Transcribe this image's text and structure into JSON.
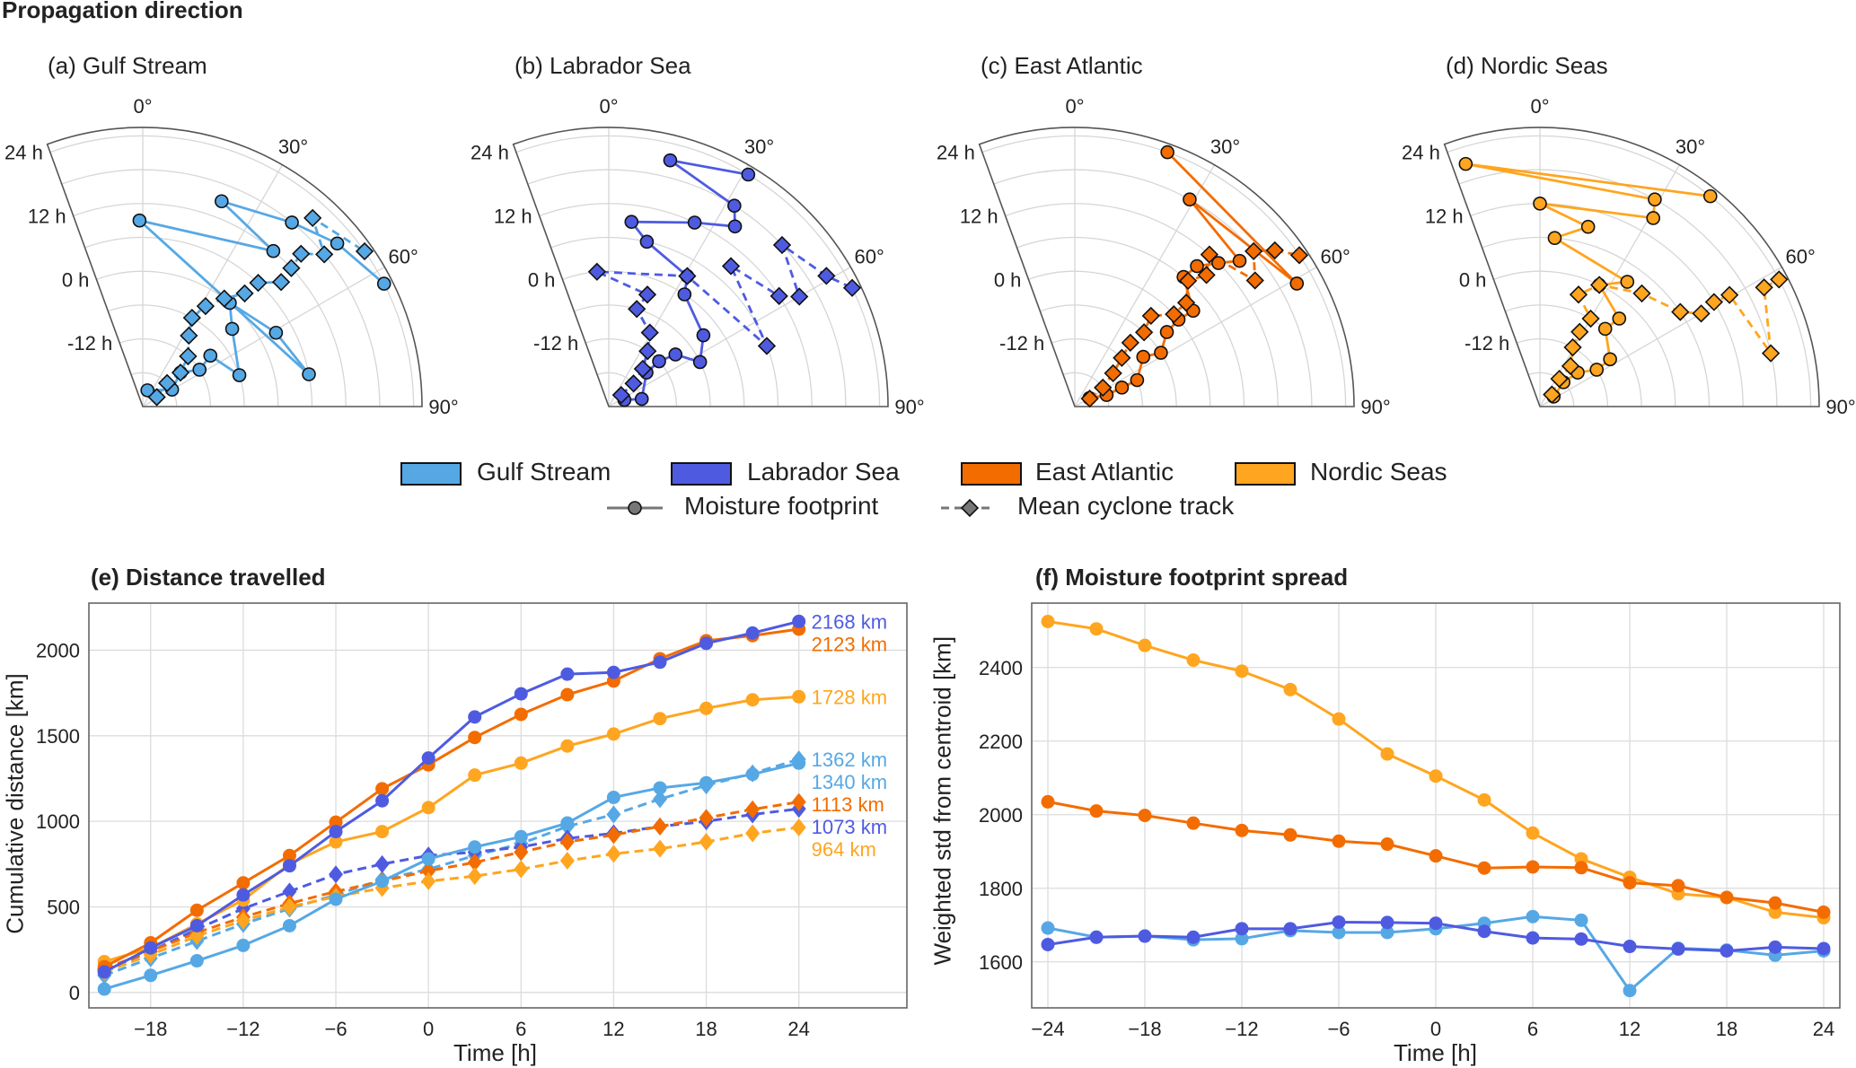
{
  "figure": {
    "title": "Propagation direction"
  },
  "legend": {
    "regions": [
      {
        "name": "Gulf Stream",
        "color": "#56A8E5"
      },
      {
        "name": "Labrador Sea",
        "color": "#4E5BE0"
      },
      {
        "name": "East Atlantic",
        "color": "#F36C00"
      },
      {
        "name": "Nordic Seas",
        "color": "#FFA51F"
      }
    ],
    "styles": [
      {
        "label": "Moisture footprint",
        "line": "solid",
        "marker": "circle"
      },
      {
        "label": "Mean cyclone track",
        "line": "dashed",
        "marker": "diamond"
      }
    ]
  },
  "chart_data": [
    {
      "type": "polar-line",
      "title": "(a) Gulf Stream",
      "color": "#56A8E5",
      "theta_range": [
        -20,
        90
      ],
      "theta_ticks": [
        "0°",
        "30°",
        "60°",
        "90°"
      ],
      "r_range": [
        -24,
        25.5
      ],
      "r_ticks": [
        "24 h",
        "12 h",
        "0 h",
        "-12 h"
      ],
      "times": [
        -21,
        -18,
        -15,
        -12,
        -9,
        -6,
        -3,
        0,
        3,
        6,
        9,
        12,
        15,
        18,
        21,
        24
      ],
      "series": [
        {
          "name": "Moisture footprint",
          "angles": [
            16,
            60,
            48,
            57,
            53,
            72,
            49,
            40,
            61,
            79,
            -1,
            40,
            21,
            39,
            50,
            63
          ]
        },
        {
          "name": "Mean cyclone track",
          "angles": [
            56,
            46,
            48,
            42,
            33,
            29,
            32,
            37,
            42,
            43,
            48,
            47,
            46,
            50,
            42,
            55
          ]
        }
      ]
    },
    {
      "type": "polar-line",
      "title": "(b) Labrador Sea",
      "color": "#4E5BE0",
      "theta_range": [
        -20,
        90
      ],
      "theta_ticks": [
        "0°",
        "30°",
        "60°",
        "90°"
      ],
      "r_range": [
        -24,
        25.5
      ],
      "r_ticks": [
        "24 h",
        "12 h",
        "0 h",
        "-12 h"
      ],
      "times": [
        -21,
        -18,
        -15,
        -12,
        -9,
        -6,
        -3,
        0,
        3,
        6,
        9,
        12,
        15,
        18,
        21,
        24
      ],
      "series": [
        {
          "name": "Moisture footprint",
          "angles": [
            67,
            77,
            48,
            48,
            52,
            64,
            53,
            34,
            31,
            13,
            7,
            25,
            35,
            32,
            14,
            31
          ]
        },
        {
          "name": "Mean cyclone track",
          "angles": [
            47,
            47,
            42,
            35,
            29,
            16,
            19,
            -5,
            31,
            69,
            41,
            57,
            60,
            47,
            59,
            64
          ]
        }
      ]
    },
    {
      "type": "polar-line",
      "title": "(c) East Atlantic",
      "color": "#F36C00",
      "theta_range": [
        -20,
        90
      ],
      "theta_ticks": [
        "0°",
        "30°",
        "60°",
        "90°"
      ],
      "r_range": [
        -24,
        25.5
      ],
      "r_ticks": [
        "24 h",
        "12 h",
        "0 h",
        "-12 h"
      ],
      "times": [
        -21,
        -18,
        -15,
        -12,
        -9,
        -6,
        -3,
        0,
        3,
        6,
        9,
        12,
        15,
        18,
        21,
        24
      ],
      "series": [
        {
          "name": "Moisture footprint",
          "angles": [
            60,
            70,
            68,
            67,
            54,
            58,
            51,
            50,
            51,
            40,
            41,
            45,
            48.5,
            29,
            61,
            20
          ]
        },
        {
          "name": "Mean cyclone track",
          "angles": [
            62,
            56,
            49,
            44,
            41,
            43,
            40,
            47,
            47,
            42,
            45,
            41.5,
            55,
            49,
            52,
            56
          ]
        }
      ]
    },
    {
      "type": "polar-line",
      "title": "(d) Nordic Seas",
      "color": "#FFA51F",
      "theta_range": [
        -20,
        90
      ],
      "theta_ticks": [
        "0°",
        "30°",
        "60°",
        "90°"
      ],
      "r_range": [
        -24,
        25.5
      ],
      "r_ticks": [
        "24 h",
        "12 h",
        "0 h",
        "-12 h"
      ],
      "times": [
        -21,
        -18,
        -15,
        -12,
        -9,
        -6,
        -3,
        0,
        3,
        6,
        9,
        12,
        15,
        18,
        21,
        24
      ],
      "series": [
        {
          "name": "Moisture footprint",
          "angles": [
            54,
            44,
            48,
            57,
            56,
            40,
            42,
            26,
            35,
            5,
            15,
            0,
            31,
            29,
            -17,
            39
          ]
        },
        {
          "name": "Mean cyclone track",
          "angles": [
            45,
            35,
            37,
            29,
            28,
            30,
            19,
            26,
            42,
            56,
            60,
            59,
            59.5,
            77,
            62,
            62
          ]
        }
      ]
    },
    {
      "type": "line",
      "title": "(e) Distance travelled",
      "xlabel": "Time [h]",
      "ylabel": "Cumulative distance [km]",
      "x": [
        -21,
        -18,
        -15,
        -12,
        -9,
        -6,
        -3,
        0,
        3,
        6,
        9,
        12,
        15,
        18,
        21,
        24
      ],
      "xticks": [
        -18,
        -12,
        -6,
        0,
        6,
        12,
        18,
        24
      ],
      "yticks": [
        0,
        500,
        1000,
        1500,
        2000
      ],
      "xlim": [
        -22,
        31
      ],
      "ylim": [
        -90,
        2275
      ],
      "grid": true,
      "series": [
        {
          "region": "Gulf Stream",
          "kind": "Mean cyclone track",
          "color": "#56A8E5",
          "dashed": true,
          "end_label": "1362 km",
          "values": [
            100,
            200,
            300,
            400,
            490,
            570,
            660,
            720,
            800,
            870,
            970,
            1040,
            1130,
            1210,
            1280,
            1362
          ]
        },
        {
          "region": "Labrador Sea",
          "kind": "Mean cyclone track",
          "color": "#4E5BE0",
          "dashed": true,
          "end_label": "1073 km",
          "values": [
            130,
            240,
            370,
            490,
            590,
            690,
            750,
            800,
            820,
            850,
            900,
            930,
            970,
            1000,
            1040,
            1073
          ]
        },
        {
          "region": "East Atlantic",
          "kind": "Mean cyclone track",
          "color": "#F36C00",
          "dashed": true,
          "end_label": "1113 km",
          "values": [
            140,
            240,
            350,
            440,
            520,
            590,
            650,
            710,
            760,
            820,
            880,
            920,
            970,
            1020,
            1070,
            1113
          ]
        },
        {
          "region": "Nordic Seas",
          "kind": "Mean cyclone track",
          "color": "#FFA51F",
          "dashed": true,
          "end_label": "964 km",
          "values": [
            120,
            220,
            330,
            420,
            500,
            560,
            610,
            650,
            680,
            720,
            770,
            810,
            840,
            880,
            930,
            964
          ]
        },
        {
          "region": "Gulf Stream",
          "kind": "Moisture footprint",
          "color": "#56A8E5",
          "dashed": false,
          "end_label": "1340 km",
          "values": [
            20,
            100,
            185,
            275,
            390,
            545,
            650,
            780,
            850,
            910,
            990,
            1140,
            1195,
            1225,
            1275,
            1340
          ]
        },
        {
          "region": "Nordic Seas",
          "kind": "Moisture footprint",
          "color": "#FFA51F",
          "dashed": false,
          "end_label": "1728 km",
          "values": [
            180,
            260,
            400,
            540,
            750,
            880,
            940,
            1080,
            1270,
            1340,
            1440,
            1510,
            1600,
            1660,
            1710,
            1728
          ]
        },
        {
          "region": "East Atlantic",
          "kind": "Moisture footprint",
          "color": "#F36C00",
          "dashed": false,
          "end_label": "2123 km",
          "values": [
            150,
            290,
            480,
            640,
            800,
            995,
            1190,
            1330,
            1490,
            1625,
            1740,
            1820,
            1950,
            2055,
            2085,
            2123
          ]
        },
        {
          "region": "Labrador Sea",
          "kind": "Moisture footprint",
          "color": "#4E5BE0",
          "dashed": false,
          "end_label": "2168 km",
          "values": [
            120,
            260,
            390,
            570,
            740,
            940,
            1120,
            1370,
            1610,
            1745,
            1860,
            1870,
            1930,
            2040,
            2100,
            2168
          ]
        }
      ]
    },
    {
      "type": "line",
      "title": "(f) Moisture footprint spread",
      "xlabel": "Time [h]",
      "ylabel": "Weighted std from centroid [km]",
      "x": [
        -24,
        -21,
        -18,
        -15,
        -12,
        -9,
        -6,
        -3,
        0,
        3,
        6,
        9,
        12,
        15,
        18,
        21,
        24
      ],
      "xticks": [
        -24,
        -18,
        -12,
        -6,
        0,
        6,
        12,
        18,
        24
      ],
      "yticks": [
        1600,
        1800,
        2000,
        2200,
        2400
      ],
      "xlim": [
        -25,
        25
      ],
      "ylim": [
        1475,
        2575
      ],
      "grid": true,
      "series": [
        {
          "region": "Nordic Seas",
          "kind": "Moisture footprint",
          "color": "#FFA51F",
          "dashed": false,
          "values": [
            2525,
            2505,
            2460,
            2420,
            2390,
            2340,
            2260,
            2165,
            2105,
            2040,
            1950,
            1880,
            1830,
            1785,
            1775,
            1735,
            1720
          ]
        },
        {
          "region": "East Atlantic",
          "kind": "Moisture footprint",
          "color": "#F36C00",
          "dashed": false,
          "values": [
            2035,
            2010,
            1998,
            1977,
            1957,
            1945,
            1928,
            1920,
            1888,
            1855,
            1858,
            1856,
            1815,
            1807,
            1775,
            1760,
            1735
          ]
        },
        {
          "region": "Gulf Stream",
          "kind": "Moisture footprint",
          "color": "#56A8E5",
          "dashed": false,
          "values": [
            1692,
            1667,
            1670,
            1660,
            1663,
            1685,
            1680,
            1680,
            1690,
            1705,
            1723,
            1713,
            1522,
            1637,
            1632,
            1618,
            1630
          ]
        },
        {
          "region": "Labrador Sea",
          "kind": "Moisture footprint",
          "color": "#4E5BE0",
          "dashed": false,
          "values": [
            1647,
            1667,
            1670,
            1667,
            1690,
            1690,
            1708,
            1707,
            1705,
            1683,
            1665,
            1662,
            1642,
            1635,
            1630,
            1640,
            1636
          ]
        }
      ]
    }
  ]
}
